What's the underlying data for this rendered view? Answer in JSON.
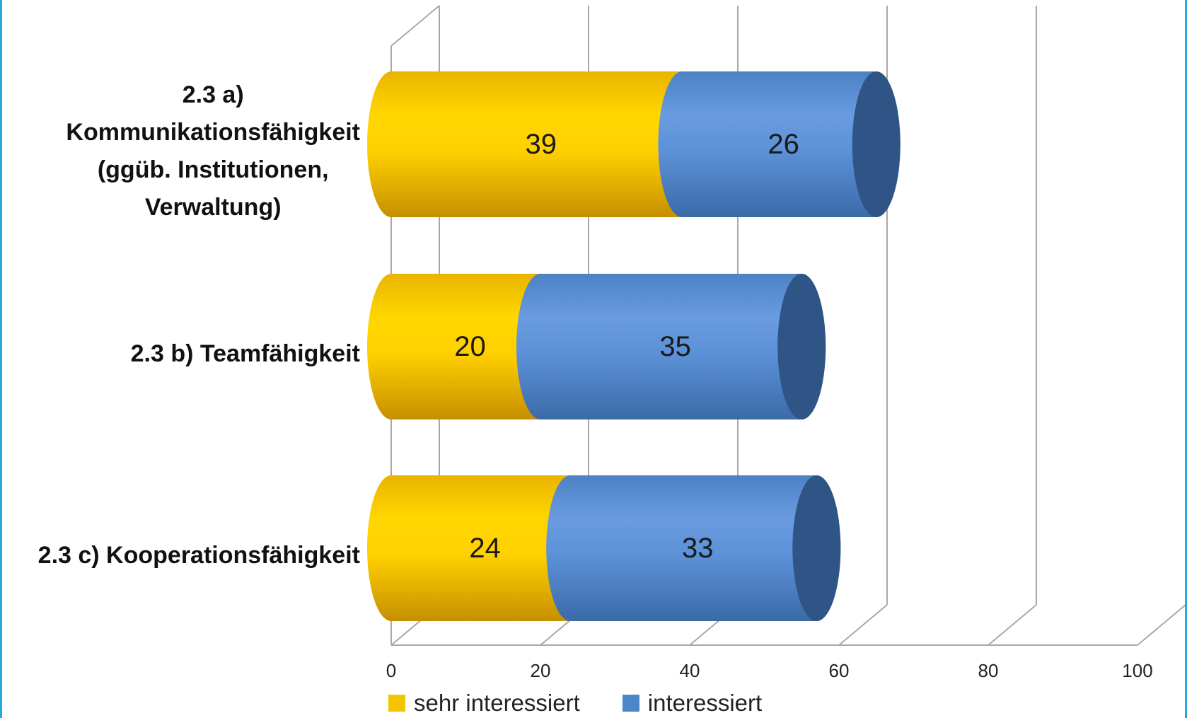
{
  "chart_data": {
    "type": "bar",
    "orientation": "horizontal",
    "stacked": true,
    "style": "3d-cylinder",
    "categories": [
      "2.3 a)\nKommunikationsfähigkeit\n(ggüb. Institutionen,\nVerwaltung)",
      "2.3 b) Teamfähigkeit",
      "2.3 c) Kooperationsfähigkeit"
    ],
    "series": [
      {
        "name": "sehr interessiert",
        "color": "#f5c400",
        "values": [
          39,
          20,
          24
        ]
      },
      {
        "name": "interessiert",
        "color": "#4a86c8",
        "values": [
          26,
          35,
          33
        ]
      }
    ],
    "xlim": [
      0,
      100
    ],
    "xticks": [
      "0",
      "20",
      "40",
      "60",
      "80",
      "100"
    ],
    "grid": true,
    "legend_position": "bottom",
    "data_labels": true
  }
}
